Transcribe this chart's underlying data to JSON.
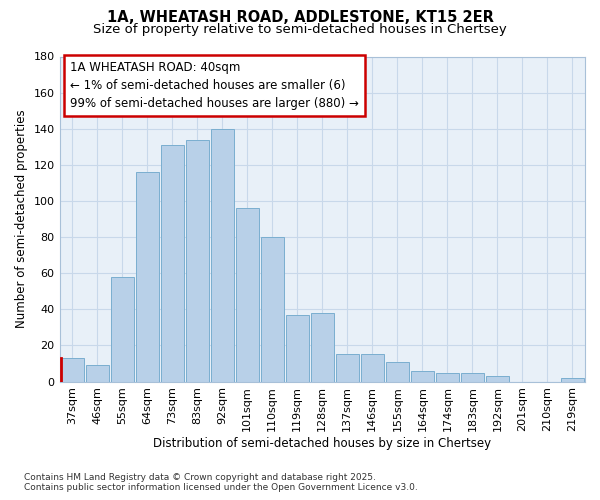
{
  "title_line1": "1A, WHEATASH ROAD, ADDLESTONE, KT15 2ER",
  "title_line2": "Size of property relative to semi-detached houses in Chertsey",
  "xlabel": "Distribution of semi-detached houses by size in Chertsey",
  "ylabel": "Number of semi-detached properties",
  "categories": [
    "37sqm",
    "46sqm",
    "55sqm",
    "64sqm",
    "73sqm",
    "83sqm",
    "92sqm",
    "101sqm",
    "110sqm",
    "119sqm",
    "128sqm",
    "137sqm",
    "146sqm",
    "155sqm",
    "164sqm",
    "174sqm",
    "183sqm",
    "192sqm",
    "201sqm",
    "210sqm",
    "219sqm"
  ],
  "values": [
    13,
    9,
    58,
    116,
    131,
    134,
    140,
    96,
    80,
    37,
    38,
    15,
    15,
    11,
    6,
    5,
    5,
    3,
    0,
    0,
    2
  ],
  "bar_color": "#b8d0e8",
  "bar_edge_color": "#7aaed0",
  "highlight_index": 0,
  "red_line_color": "#cc0000",
  "annotation_title": "1A WHEATASH ROAD: 40sqm",
  "annotation_line1": "← 1% of semi-detached houses are smaller (6)",
  "annotation_line2": "99% of semi-detached houses are larger (880) →",
  "annotation_box_edge_color": "#cc0000",
  "annotation_box_fill": "#ffffff",
  "ylim": [
    0,
    180
  ],
  "yticks": [
    0,
    20,
    40,
    60,
    80,
    100,
    120,
    140,
    160,
    180
  ],
  "grid_color": "#c8d8ea",
  "background_color": "#ddeaf5",
  "plot_bg_color": "#e8f0f8",
  "footer_line1": "Contains HM Land Registry data © Crown copyright and database right 2025.",
  "footer_line2": "Contains public sector information licensed under the Open Government Licence v3.0.",
  "title_fontsize": 10.5,
  "subtitle_fontsize": 9.5,
  "tick_fontsize": 8,
  "ylabel_fontsize": 8.5,
  "xlabel_fontsize": 8.5,
  "annotation_fontsize": 8.5,
  "footer_fontsize": 6.5
}
